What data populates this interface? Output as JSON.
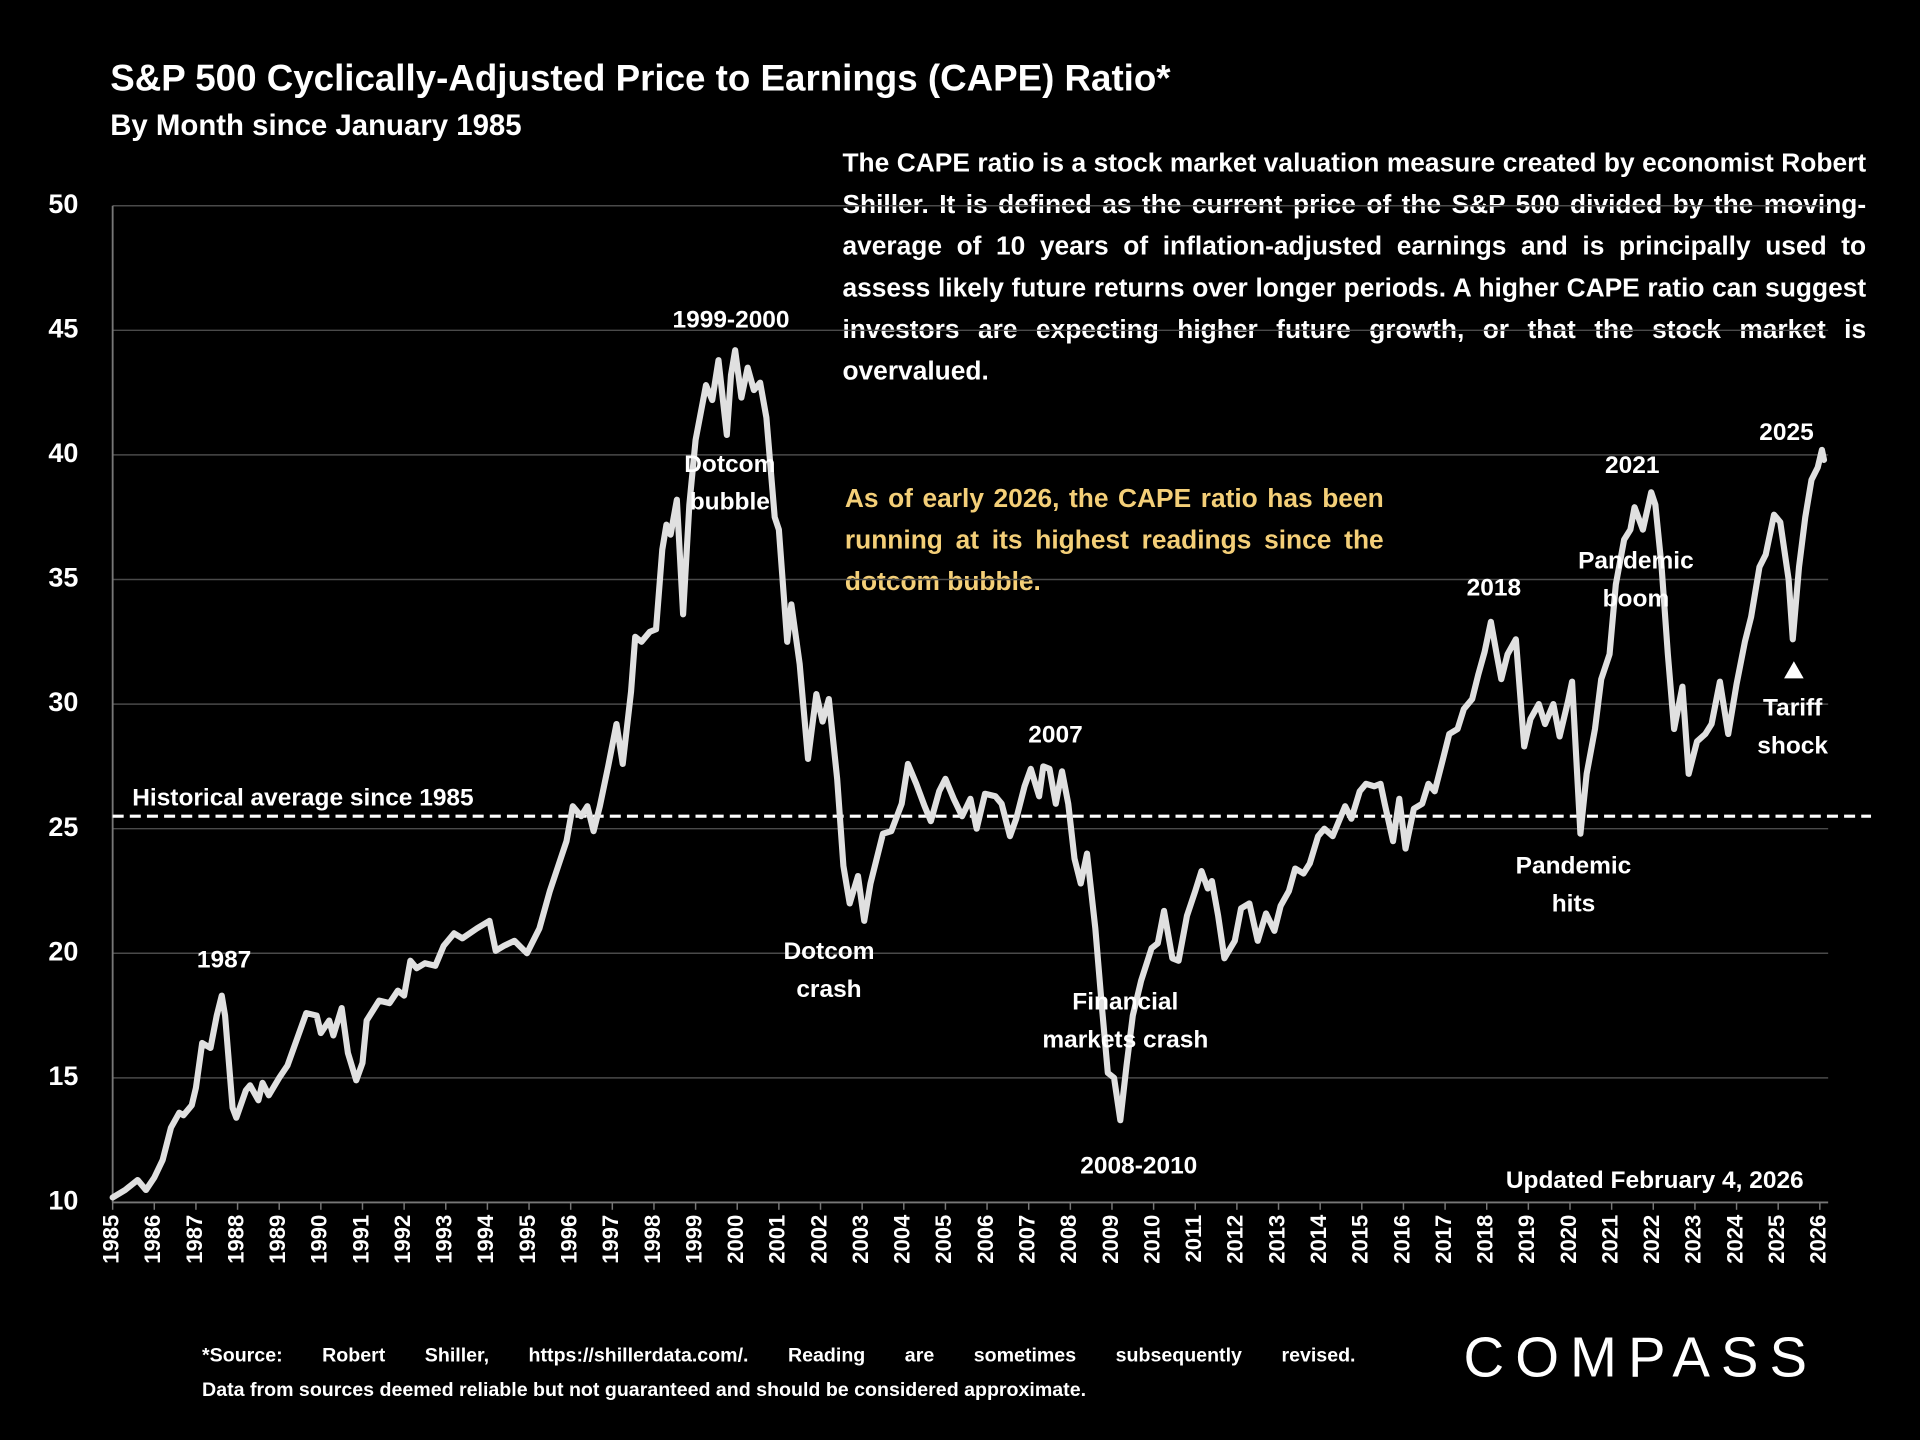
{
  "chart_data": {
    "type": "line",
    "title": "S&P 500 Cyclically-Adjusted Price to Earnings (CAPE) Ratio*",
    "subtitle": "By Month since January 1985",
    "description": "The CAPE ratio is a stock market valuation measure created by economist Robert Shiller. It is defined as the current price of the S&P 500 divided by the moving-average of 10 years of inflation-adjusted earnings and is principally used to assess likely future returns over longer periods. A higher CAPE ratio can suggest investors are expecting higher future growth, or that the stock market is overvalued.",
    "callout": "As of early 2026, the CAPE ratio has been running at its highest readings since the dotcom bubble.",
    "updated": "Updated February 4, 2026",
    "footnote": [
      "*Source: Robert Shiller, https://shillerdata.com/. Reading are sometimes subsequently revised.",
      "Data from sources deemed reliable but not guaranteed and should be considered approximate."
    ],
    "logo": "COMPASS",
    "annotations": [
      [
        "1987"
      ],
      [
        "1999-2000"
      ],
      [
        "Dotcom",
        "bubble"
      ],
      [
        "Dotcom",
        "crash"
      ],
      [
        "2007"
      ],
      [
        "Financial",
        "markets crash"
      ],
      [
        "2008-2010"
      ],
      [
        "2018"
      ],
      [
        "2021"
      ],
      [
        "Pandemic",
        "boom"
      ],
      [
        "Pandemic",
        "hits"
      ],
      [
        "2025"
      ],
      [
        "Tariff",
        "shock"
      ]
    ],
    "average": {
      "value": 25.5,
      "label": "Historical average since 1985"
    },
    "color": "#e0e0e0",
    "grid": true,
    "xlim": [
      1985,
      2026.2
    ],
    "ylim": [
      10,
      50
    ],
    "yticks": [
      10,
      15,
      20,
      25,
      30,
      35,
      40,
      45,
      50
    ],
    "xticks": [
      1985,
      1986,
      1987,
      1988,
      1989,
      1990,
      1991,
      1992,
      1993,
      1994,
      1995,
      1996,
      1997,
      1998,
      1999,
      2000,
      2001,
      2002,
      2003,
      2004,
      2005,
      2006,
      2007,
      2008,
      2009,
      2010,
      2011,
      2012,
      2013,
      2014,
      2015,
      2016,
      2017,
      2018,
      2019,
      2020,
      2021,
      2022,
      2023,
      2024,
      2025,
      2026
    ],
    "x": [
      1985.0,
      1985.3,
      1985.6,
      1985.8,
      1986.0,
      1986.2,
      1986.4,
      1986.6,
      1986.7,
      1986.9,
      1987.0,
      1987.15,
      1987.35,
      1987.5,
      1987.62,
      1987.7,
      1987.88,
      1987.97,
      1988.2,
      1988.3,
      1988.5,
      1988.6,
      1988.75,
      1989.0,
      1989.2,
      1989.35,
      1989.65,
      1989.9,
      1990.0,
      1990.2,
      1990.3,
      1990.5,
      1990.65,
      1990.85,
      1991.0,
      1991.1,
      1991.4,
      1991.65,
      1991.85,
      1992.0,
      1992.15,
      1992.3,
      1992.5,
      1992.75,
      1992.95,
      1993.2,
      1993.4,
      1993.75,
      1994.05,
      1994.2,
      1994.4,
      1994.65,
      1994.95,
      1995.25,
      1995.5,
      1995.7,
      1995.9,
      1996.05,
      1996.25,
      1996.4,
      1996.55,
      1996.7,
      1996.9,
      1997.1,
      1997.25,
      1997.45,
      1997.55,
      1997.7,
      1997.9,
      1998.05,
      1998.2,
      1998.3,
      1998.4,
      1998.55,
      1998.7,
      1998.85,
      1999.0,
      1999.25,
      1999.4,
      1999.55,
      1999.75,
      1999.85,
      1999.95,
      2000.1,
      2000.25,
      2000.4,
      2000.55,
      2000.7,
      2000.9,
      2001.0,
      2001.2,
      2001.3,
      2001.5,
      2001.7,
      2001.9,
      2002.05,
      2002.2,
      2002.4,
      2002.55,
      2002.7,
      2002.9,
      2003.05,
      2003.2,
      2003.5,
      2003.7,
      2003.95,
      2004.1,
      2004.3,
      2004.5,
      2004.65,
      2004.85,
      2005.0,
      2005.2,
      2005.4,
      2005.6,
      2005.75,
      2005.95,
      2006.2,
      2006.35,
      2006.55,
      2006.7,
      2006.9,
      2007.05,
      2007.25,
      2007.35,
      2007.5,
      2007.65,
      2007.8,
      2007.95,
      2008.1,
      2008.25,
      2008.4,
      2008.6,
      2008.75,
      2008.9,
      2009.05,
      2009.2,
      2009.35,
      2009.5,
      2009.7,
      2009.95,
      2010.1,
      2010.25,
      2010.45,
      2010.6,
      2010.8,
      2011.0,
      2011.15,
      2011.3,
      2011.4,
      2011.55,
      2011.7,
      2011.95,
      2012.1,
      2012.3,
      2012.5,
      2012.7,
      2012.9,
      2013.05,
      2013.25,
      2013.4,
      2013.6,
      2013.75,
      2013.95,
      2014.1,
      2014.3,
      2014.45,
      2014.6,
      2014.75,
      2014.95,
      2015.1,
      2015.3,
      2015.45,
      2015.55,
      2015.75,
      2015.9,
      2016.05,
      2016.25,
      2016.45,
      2016.6,
      2016.75,
      2016.95,
      2017.1,
      2017.3,
      2017.45,
      2017.65,
      2017.8,
      2017.95,
      2018.1,
      2018.25,
      2018.35,
      2018.5,
      2018.7,
      2018.9,
      2019.05,
      2019.25,
      2019.4,
      2019.6,
      2019.75,
      2019.95,
      2020.05,
      2020.25,
      2020.4,
      2020.6,
      2020.75,
      2020.95,
      2021.1,
      2021.3,
      2021.45,
      2021.55,
      2021.75,
      2021.95,
      2022.05,
      2022.2,
      2022.35,
      2022.5,
      2022.7,
      2022.85,
      2023.05,
      2023.25,
      2023.4,
      2023.6,
      2023.8,
      2024.0,
      2024.2,
      2024.35,
      2024.55,
      2024.7,
      2024.9,
      2025.05,
      2025.25,
      2025.35,
      2025.5,
      2025.65,
      2025.8,
      2025.95,
      2026.05,
      2026.1
    ],
    "values": [
      10.2,
      10.5,
      10.9,
      10.5,
      11.0,
      11.7,
      13.0,
      13.6,
      13.5,
      13.9,
      14.6,
      16.4,
      16.2,
      17.5,
      18.3,
      17.5,
      13.8,
      13.4,
      14.5,
      14.7,
      14.1,
      14.8,
      14.3,
      15.0,
      15.5,
      16.2,
      17.6,
      17.5,
      16.8,
      17.3,
      16.7,
      17.8,
      16.0,
      14.9,
      15.6,
      17.3,
      18.1,
      18.0,
      18.5,
      18.3,
      19.7,
      19.4,
      19.6,
      19.5,
      20.3,
      20.8,
      20.6,
      21.0,
      21.3,
      20.1,
      20.3,
      20.5,
      20.0,
      21.0,
      22.5,
      23.5,
      24.5,
      25.9,
      25.5,
      25.9,
      24.9,
      25.9,
      27.5,
      29.2,
      27.6,
      30.5,
      32.7,
      32.5,
      32.9,
      33.0,
      36.2,
      37.2,
      36.8,
      38.2,
      33.6,
      38.0,
      40.6,
      42.8,
      42.2,
      43.8,
      40.8,
      43.2,
      44.2,
      42.3,
      43.5,
      42.6,
      42.9,
      41.5,
      37.5,
      37.0,
      32.5,
      34.0,
      31.6,
      27.8,
      30.4,
      29.3,
      30.2,
      27.0,
      23.5,
      22.0,
      23.1,
      21.3,
      22.8,
      24.8,
      24.9,
      26.0,
      27.6,
      26.8,
      25.9,
      25.3,
      26.5,
      27.0,
      26.2,
      25.5,
      26.2,
      25.0,
      26.4,
      26.3,
      26.0,
      24.7,
      25.4,
      26.7,
      27.4,
      26.3,
      27.5,
      27.4,
      26.0,
      27.3,
      26.0,
      23.8,
      22.8,
      24.0,
      21.0,
      18.0,
      15.2,
      15.0,
      13.3,
      15.5,
      17.5,
      18.9,
      20.2,
      20.4,
      21.7,
      19.8,
      19.7,
      21.5,
      22.5,
      23.3,
      22.6,
      22.9,
      21.5,
      19.8,
      20.5,
      21.8,
      22.0,
      20.5,
      21.6,
      20.9,
      21.9,
      22.5,
      23.4,
      23.2,
      23.6,
      24.7,
      25.0,
      24.7,
      25.3,
      25.9,
      25.4,
      26.5,
      26.8,
      26.7,
      26.8,
      26.0,
      24.5,
      26.2,
      24.2,
      25.8,
      26.0,
      26.8,
      26.5,
      27.8,
      28.8,
      29.0,
      29.8,
      30.2,
      31.2,
      32.1,
      33.3,
      31.9,
      31.0,
      32.0,
      32.6,
      28.3,
      29.4,
      30.0,
      29.2,
      30.0,
      28.7,
      30.1,
      30.9,
      24.8,
      27.2,
      29.0,
      31.0,
      32.0,
      34.8,
      36.6,
      37.0,
      37.9,
      37.0,
      38.5,
      38.0,
      35.5,
      32.0,
      29.0,
      30.7,
      27.2,
      28.5,
      28.8,
      29.2,
      30.9,
      28.8,
      30.8,
      32.5,
      33.5,
      35.5,
      36.0,
      37.6,
      37.3,
      35.0,
      32.6,
      35.5,
      37.5,
      39.0,
      39.5,
      40.2,
      39.8
    ]
  }
}
